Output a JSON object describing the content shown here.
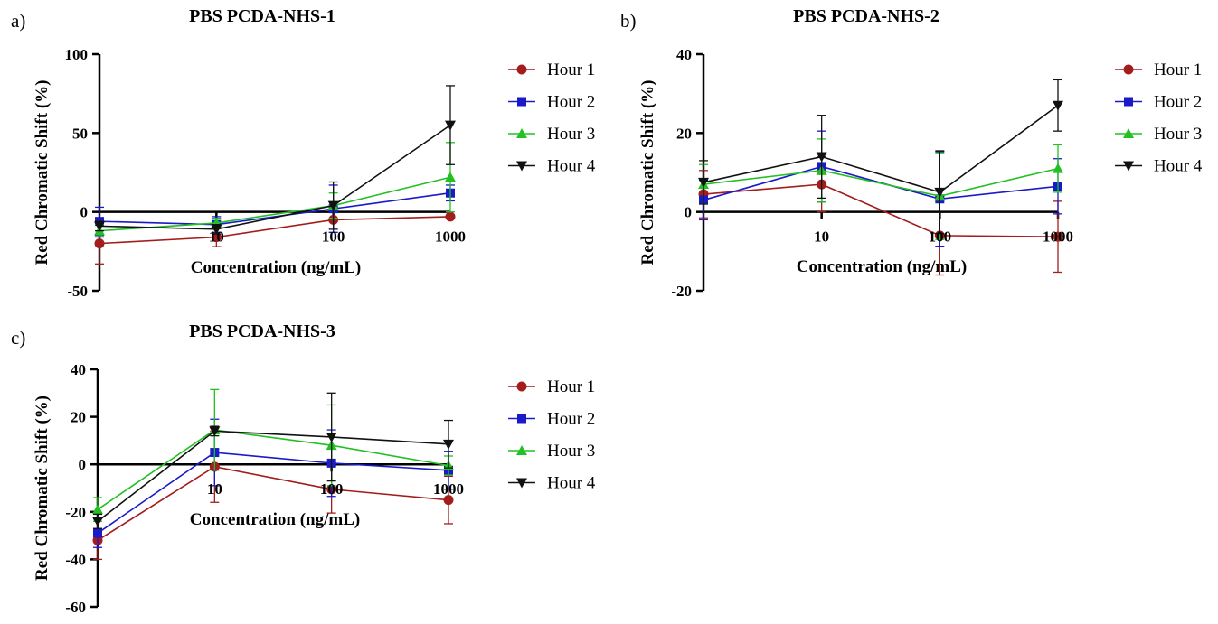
{
  "chart_data": [
    {
      "type": "line",
      "panel_label": "a)",
      "title": "PBS PCDA-NHS-1",
      "xlabel": "Concentration (ng/mL)",
      "ylabel": "Red Chromatic Shift (%)",
      "x_scale": "log",
      "x_tick_labels": [
        "10",
        "100",
        "1000"
      ],
      "x": [
        1,
        10,
        100,
        1000
      ],
      "ylim": [
        -50,
        100
      ],
      "y_ticks": [
        100,
        50,
        0,
        -50
      ],
      "legend_position": "right",
      "series": [
        {
          "name": "Hour 1",
          "color": "#a31d1d",
          "marker": "circle",
          "values": [
            -20,
            -16,
            -5,
            -3
          ],
          "errors": [
            13,
            6,
            8,
            0
          ]
        },
        {
          "name": "Hour 2",
          "color": "#1a1ac8",
          "marker": "square",
          "values": [
            -6,
            -8,
            2,
            12
          ],
          "errors": [
            9,
            5,
            15,
            5
          ]
        },
        {
          "name": "Hour 3",
          "color": "#22c022",
          "marker": "triangle-up",
          "values": [
            -12,
            -7,
            4,
            22
          ],
          "errors": [
            4,
            3,
            8,
            22
          ]
        },
        {
          "name": "Hour 4",
          "color": "#111111",
          "marker": "triangle-down",
          "values": [
            -9,
            -11,
            4,
            55
          ],
          "errors": [
            3,
            3,
            15,
            25
          ]
        }
      ]
    },
    {
      "type": "line",
      "panel_label": "b)",
      "title": "PBS PCDA-NHS-2",
      "xlabel": "Concentration (ng/mL)",
      "ylabel": "Red Chromatic Shift (%)",
      "x_scale": "log",
      "x_tick_labels": [
        "10",
        "100",
        "1000"
      ],
      "x": [
        1,
        10,
        100,
        1000
      ],
      "ylim": [
        -20,
        40
      ],
      "y_ticks": [
        40,
        20,
        0,
        -20
      ],
      "legend_position": "right",
      "series": [
        {
          "name": "Hour 1",
          "color": "#a31d1d",
          "marker": "circle",
          "values": [
            4.5,
            7,
            -6,
            -6.3
          ],
          "errors": [
            6,
            7,
            10,
            9
          ]
        },
        {
          "name": "Hour 2",
          "color": "#1a1ac8",
          "marker": "square",
          "values": [
            3,
            11.5,
            3.3,
            6.5
          ],
          "errors": [
            5,
            9,
            12,
            7
          ]
        },
        {
          "name": "Hour 3",
          "color": "#22c022",
          "marker": "triangle-up",
          "values": [
            7,
            10.5,
            4,
            11
          ],
          "errors": [
            5,
            8,
            11,
            6
          ]
        },
        {
          "name": "Hour 4",
          "color": "#111111",
          "marker": "triangle-down",
          "values": [
            7.5,
            14,
            5,
            27
          ],
          "errors": [
            5.5,
            10.5,
            10.5,
            6.5
          ]
        }
      ]
    },
    {
      "type": "line",
      "panel_label": "c)",
      "title": "PBS PCDA-NHS-3",
      "xlabel": "Concentration (ng/mL)",
      "ylabel": "Red Chromatic Shift (%)",
      "x_scale": "log",
      "x_tick_labels": [
        "10",
        "100",
        "1000"
      ],
      "x": [
        1,
        10,
        100,
        1000
      ],
      "ylim": [
        -60,
        40
      ],
      "y_ticks": [
        40,
        20,
        0,
        -20,
        -40,
        -60
      ],
      "legend_position": "right",
      "series": [
        {
          "name": "Hour 1",
          "color": "#a31d1d",
          "marker": "circle",
          "values": [
            -32,
            -1,
            -10.5,
            -15
          ],
          "errors": [
            8,
            15,
            10,
            10
          ]
        },
        {
          "name": "Hour 2",
          "color": "#1a1ac8",
          "marker": "square",
          "values": [
            -29,
            5,
            0.5,
            -2.5
          ],
          "errors": [
            6,
            14,
            14,
            8
          ]
        },
        {
          "name": "Hour 3",
          "color": "#22c022",
          "marker": "triangle-up",
          "values": [
            -19,
            14.5,
            8,
            -0.5
          ],
          "errors": [
            5,
            17,
            17,
            4
          ]
        },
        {
          "name": "Hour 4",
          "color": "#111111",
          "marker": "triangle-down",
          "values": [
            -24,
            14,
            11.5,
            8.5
          ],
          "errors": [
            3,
            2,
            18.5,
            10
          ]
        }
      ]
    }
  ]
}
